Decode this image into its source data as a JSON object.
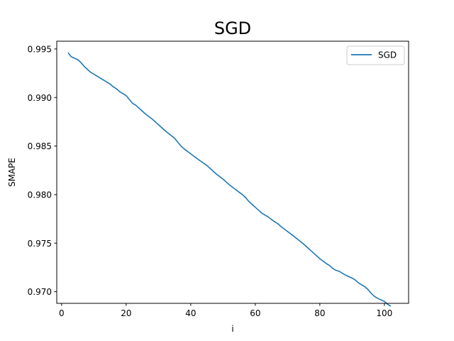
{
  "chart_data": {
    "type": "line",
    "title": "SGD",
    "xlabel": "i",
    "ylabel": "SMAPE",
    "xlim": [
      -1.5,
      107.5
    ],
    "ylim": [
      0.9688,
      0.9958
    ],
    "x_ticks": [
      0,
      20,
      40,
      60,
      80,
      100
    ],
    "y_ticks": [
      0.97,
      0.975,
      0.98,
      0.985,
      0.99,
      0.995
    ],
    "x_tick_labels": [
      "0",
      "20",
      "40",
      "60",
      "80",
      "100"
    ],
    "y_tick_labels": [
      "0.970",
      "0.975",
      "0.980",
      "0.985",
      "0.990",
      "0.995"
    ],
    "grid": false,
    "legend_position": "upper right",
    "series": [
      {
        "name": "SGD",
        "color": "#1f77b4",
        "x": [
          2,
          3,
          5,
          6,
          7,
          8,
          9,
          10,
          12,
          15,
          16,
          17,
          18,
          20,
          21,
          22,
          23,
          25,
          26,
          28,
          30,
          31,
          32,
          35,
          36,
          37,
          38,
          40,
          42,
          45,
          46,
          47,
          48,
          50,
          51,
          52,
          54,
          56,
          57,
          58,
          59,
          60,
          61,
          62,
          63,
          64,
          66,
          67,
          68,
          70,
          72,
          75,
          76,
          77,
          78,
          80,
          82,
          83,
          84,
          85,
          86,
          87,
          88,
          90,
          91,
          92,
          94,
          95,
          96,
          97,
          98,
          100,
          101,
          102
        ],
        "y": [
          0.9946,
          0.9942,
          0.9939,
          0.9936,
          0.9932,
          0.9929,
          0.9926,
          0.9924,
          0.992,
          0.9914,
          0.9911,
          0.9909,
          0.9906,
          0.9902,
          0.9898,
          0.9894,
          0.9892,
          0.9886,
          0.9883,
          0.9878,
          0.9872,
          0.9869,
          0.9866,
          0.9858,
          0.9854,
          0.985,
          0.9847,
          0.9842,
          0.9837,
          0.983,
          0.9827,
          0.9824,
          0.9821,
          0.9816,
          0.9813,
          0.981,
          0.9805,
          0.98,
          0.9797,
          0.9793,
          0.979,
          0.9787,
          0.9784,
          0.9781,
          0.9779,
          0.9777,
          0.9772,
          0.977,
          0.9767,
          0.9762,
          0.9757,
          0.9749,
          0.9746,
          0.9743,
          0.974,
          0.9734,
          0.9729,
          0.9727,
          0.9724,
          0.9722,
          0.9721,
          0.9719,
          0.9717,
          0.9714,
          0.9712,
          0.9709,
          0.9705,
          0.9702,
          0.9698,
          0.9695,
          0.9693,
          0.969,
          0.9687,
          0.9685
        ]
      }
    ]
  }
}
